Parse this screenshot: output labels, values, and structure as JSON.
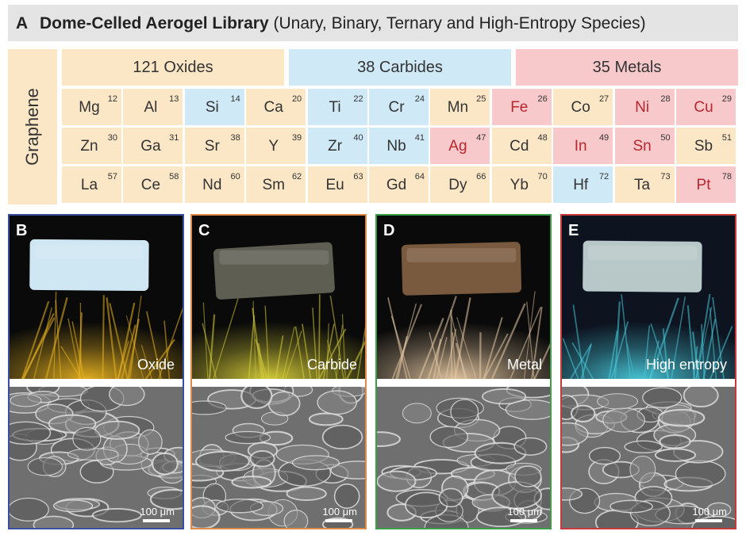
{
  "panel_a": {
    "letter": "A",
    "title_bold": "Dome-Celled Aerogel Library",
    "title_rest": " (Unary, Binary, Ternary and High-Entropy Species)",
    "graphene_label": "Graphene",
    "headers": {
      "oxides": "121 Oxides",
      "carbides": "38 Carbides",
      "metals": "35 Metals"
    },
    "elements": [
      [
        {
          "sym": "Mg",
          "num": "12",
          "type": "oxide"
        },
        {
          "sym": "Al",
          "num": "13",
          "type": "oxide"
        },
        {
          "sym": "Si",
          "num": "14",
          "type": "carbide"
        },
        {
          "sym": "Ca",
          "num": "20",
          "type": "oxide"
        },
        {
          "sym": "Ti",
          "num": "22",
          "type": "carbide"
        },
        {
          "sym": "Cr",
          "num": "24",
          "type": "carbide"
        },
        {
          "sym": "Mn",
          "num": "25",
          "type": "oxide"
        },
        {
          "sym": "Fe",
          "num": "26",
          "type": "metal"
        },
        {
          "sym": "Co",
          "num": "27",
          "type": "oxide"
        },
        {
          "sym": "Ni",
          "num": "28",
          "type": "metal"
        },
        {
          "sym": "Cu",
          "num": "29",
          "type": "metal"
        }
      ],
      [
        {
          "sym": "Zn",
          "num": "30",
          "type": "oxide"
        },
        {
          "sym": "Ga",
          "num": "31",
          "type": "oxide"
        },
        {
          "sym": "Sr",
          "num": "38",
          "type": "oxide"
        },
        {
          "sym": "Y",
          "num": "39",
          "type": "oxide"
        },
        {
          "sym": "Zr",
          "num": "40",
          "type": "carbide"
        },
        {
          "sym": "Nb",
          "num": "41",
          "type": "carbide"
        },
        {
          "sym": "Ag",
          "num": "47",
          "type": "metal"
        },
        {
          "sym": "Cd",
          "num": "48",
          "type": "oxide"
        },
        {
          "sym": "In",
          "num": "49",
          "type": "metal"
        },
        {
          "sym": "Sn",
          "num": "50",
          "type": "metal"
        },
        {
          "sym": "Sb",
          "num": "51",
          "type": "oxide"
        }
      ],
      [
        {
          "sym": "La",
          "num": "57",
          "type": "oxide"
        },
        {
          "sym": "Ce",
          "num": "58",
          "type": "oxide"
        },
        {
          "sym": "Nd",
          "num": "60",
          "type": "oxide"
        },
        {
          "sym": "Sm",
          "num": "62",
          "type": "oxide"
        },
        {
          "sym": "Eu",
          "num": "63",
          "type": "oxide"
        },
        {
          "sym": "Gd",
          "num": "64",
          "type": "oxide"
        },
        {
          "sym": "Dy",
          "num": "66",
          "type": "oxide"
        },
        {
          "sym": "Yb",
          "num": "70",
          "type": "oxide"
        },
        {
          "sym": "Hf",
          "num": "72",
          "type": "carbide"
        },
        {
          "sym": "Ta",
          "num": "73",
          "type": "oxide"
        },
        {
          "sym": "Pt",
          "num": "78",
          "type": "metal"
        }
      ]
    ]
  },
  "panels": [
    {
      "letter": "B",
      "caption": "Oxide",
      "scale": "100 μm",
      "border_color": "#3b4fa0",
      "sample_color": "#cfe6f3",
      "bg_color": "#0a0a0a",
      "fiber_color": "#e8b320"
    },
    {
      "letter": "C",
      "caption": "Carbide",
      "scale": "100 μm",
      "border_color": "#e08a4a",
      "sample_color": "#5e5e52",
      "bg_color": "#0a0a0a",
      "fiber_color": "#d9d03a"
    },
    {
      "letter": "D",
      "caption": "Metal",
      "scale": "100 μm",
      "border_color": "#3aa048",
      "sample_color": "#7a5a3e",
      "bg_color": "#0a0a0a",
      "fiber_color": "#e6c9a4"
    },
    {
      "letter": "E",
      "caption": "High entropy",
      "scale": "100 μm",
      "border_color": "#c83a3a",
      "sample_color": "#b8c8c8",
      "bg_color": "#0d1420",
      "fiber_color": "#48c8d8"
    }
  ]
}
